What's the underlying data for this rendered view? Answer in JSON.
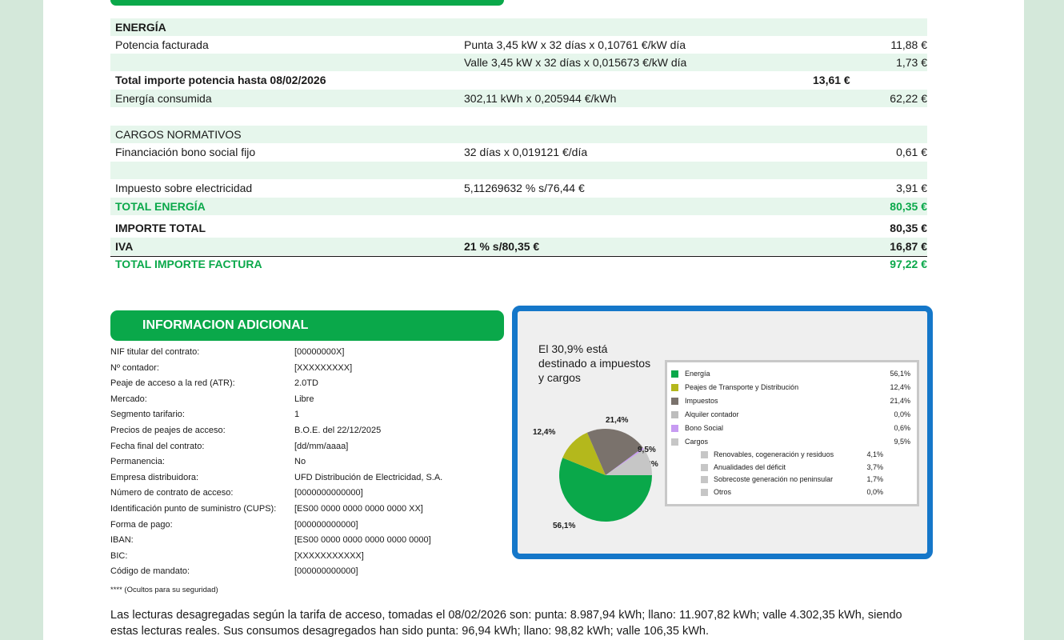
{
  "invoice": {
    "energia_header": "ENERGÍA",
    "potencia_label": "Potencia facturada",
    "punta_detail": "Punta 3,45 kW x 32 días x 0,10761 €/kW día",
    "punta_amount": "11,88 €",
    "valle_detail": "Valle 3,45 kW x 32 días x 0,015673 €/kW día",
    "valle_amount": "1,73 €",
    "total_potencia_label": "Total importe potencia hasta 08/02/2026",
    "total_potencia_amount": "13,61 €",
    "energia_consumida_label": "Energía consumida",
    "energia_consumida_detail": "302,11 kWh x 0,205944 €/kWh",
    "energia_consumida_amount": "62,22 €",
    "cargos_header": "CARGOS NORMATIVOS",
    "bono_label": "Financiación bono social fijo",
    "bono_detail": "32 días x 0,019121 €/día",
    "bono_amount": "0,61 €",
    "impuesto_label": "Impuesto sobre electricidad",
    "impuesto_detail": "5,11269632 % s/76,44 €",
    "impuesto_amount": "3,91 €",
    "total_energia_label": "TOTAL ENERGÍA",
    "total_energia_amount": "80,35 €",
    "importe_total_label": "IMPORTE TOTAL",
    "importe_total_amount": "80,35 €",
    "iva_label": "IVA",
    "iva_detail": "21 % s/80,35 €",
    "iva_amount": "16,87 €",
    "total_factura_label": "TOTAL IMPORTE FACTURA",
    "total_factura_amount": "97,22 €"
  },
  "info_adicional": {
    "title": "INFORMACION ADICIONAL",
    "rows": [
      {
        "label": "NIF titular del contrato:",
        "value": "[00000000X]"
      },
      {
        "label": "Nº contador:",
        "value": "[XXXXXXXXX]"
      },
      {
        "label": "Peaje de acceso a la red (ATR):",
        "value": "2.0TD"
      },
      {
        "label": "Mercado:",
        "value": "Libre"
      },
      {
        "label": "Segmento tarifario:",
        "value": "1"
      },
      {
        "label": "Precios de peajes de acceso:",
        "value": "B.O.E. del 22/12/2025"
      },
      {
        "label": "Fecha final del contrato:",
        "value": "[dd/mm/aaaa]"
      },
      {
        "label": "Permanencia:",
        "value": "No"
      },
      {
        "label": "Empresa distribuidora:",
        "value": "UFD Distribución de Electricidad, S.A."
      },
      {
        "label": "Número de contrato de acceso:",
        "value": "[0000000000000]"
      },
      {
        "label": "Identificación punto de suministro (CUPS):",
        "value": "[ES00 0000 0000 0000 0000 XX]"
      },
      {
        "label": "Forma de pago:",
        "value": "[000000000000]"
      },
      {
        "label": "IBAN:",
        "value": "[ES00 0000 0000 0000 0000 0000]"
      },
      {
        "label": "BIC:",
        "value": "[XXXXXXXXXXX]"
      },
      {
        "label": "Código de mandato:",
        "value": "[000000000000]"
      }
    ],
    "note": "**** (Ocultos para su seguridad)"
  },
  "lecturas_text": "Las lecturas desagregadas según la tarifa de acceso, tomadas el 08/02/2026 son: punta: 8.987,94 kWh; llano: 11.907,82 kWh; valle 4.302,35 kWh, siendo estas lecturas reales. Sus consumos desagregados han sido punta: 96,94 kWh; llano: 98,82 kWh; valle 106,35 kWh.",
  "colors": {
    "brand_green": "#0aa84a",
    "frame_blue": "#1577c9",
    "peajes": "#b4b81c",
    "impuestos": "#7a726c",
    "alquiler": "#bdbdbd",
    "bono": "#c79bf2",
    "cargos": "#c6c6c6"
  },
  "chart_data": {
    "type": "pie",
    "title": "El 30,9% está destinado a impuestos y cargos",
    "slices": [
      {
        "name": "Energía",
        "value": 56.1,
        "label": "56,1%",
        "color": "#0aa84a"
      },
      {
        "name": "Peajes de Transporte y Distribución",
        "value": 12.4,
        "label": "12,4%",
        "color": "#b4b81c"
      },
      {
        "name": "Impuestos",
        "value": 21.4,
        "label": "21,4%",
        "color": "#7a726c"
      },
      {
        "name": "Alquiler contador",
        "value": 0.0,
        "label": "0,0%",
        "color": "#bdbdbd"
      },
      {
        "name": "Bono Social",
        "value": 0.6,
        "label": "0,6%",
        "color": "#c79bf2"
      },
      {
        "name": "Cargos",
        "value": 9.5,
        "label": "9,5%",
        "color": "#c6c6c6"
      }
    ],
    "cargos_breakdown": [
      {
        "name": "Renovables, cogeneración y residuos",
        "value": 4.1,
        "label": "4,1%"
      },
      {
        "name": "Anualidades del déficit",
        "value": 3.7,
        "label": "3,7%"
      },
      {
        "name": "Sobrecoste generación no peninsular",
        "value": 1.7,
        "label": "1,7%"
      },
      {
        "name": "Otros",
        "value": 0.0,
        "label": "0,0%"
      }
    ],
    "legend_placement": "right"
  }
}
